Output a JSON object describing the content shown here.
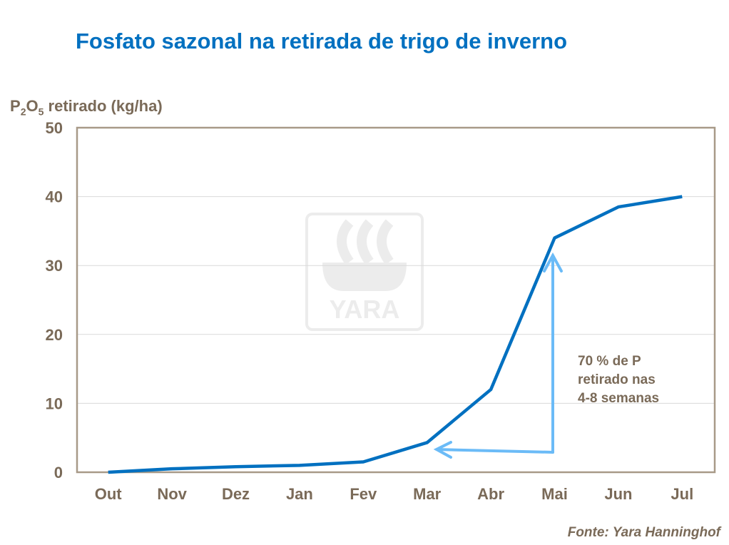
{
  "chart_data": {
    "type": "line",
    "title": "Fosfato sazonal na retirada de trigo de inverno",
    "ylabel_parts": {
      "p": "P",
      "sub1": "2",
      "o": "O",
      "sub2": "5",
      "rest": " retirado (kg/ha)"
    },
    "xlabel": "",
    "categories": [
      "Out",
      "Nov",
      "Dez",
      "Jan",
      "Fev",
      "Mar",
      "Abr",
      "Mai",
      "Jun",
      "Jul"
    ],
    "values": [
      0,
      0.5,
      0.8,
      1.0,
      1.5,
      4.3,
      12,
      34,
      38.5,
      40
    ],
    "ylim": [
      0,
      50
    ],
    "yticks": [
      "0",
      "10",
      "20",
      "30",
      "40",
      "50"
    ],
    "grid": true,
    "line_color": "#0070C0",
    "arrow_color": "#6BBBF7",
    "annotation": [
      "70 % de P",
      "retirado  nas",
      "4-8 semanas"
    ],
    "source": "Fonte: Yara Hanninghof"
  },
  "watermark": {
    "text": "YARA",
    "icon": "yara-viking-ship-logo"
  }
}
